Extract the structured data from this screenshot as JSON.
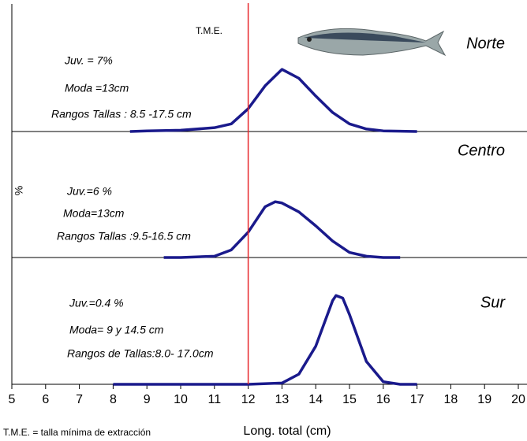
{
  "chart_data": {
    "type": "line",
    "xlabel": "Long. total (cm)",
    "ylabel": "%",
    "xlim": [
      5,
      20
    ],
    "xticks": [
      5,
      6,
      7,
      8,
      9,
      10,
      11,
      12,
      13,
      14,
      15,
      16,
      17,
      18,
      19,
      20
    ],
    "ylim": [
      0,
      100
    ],
    "color": "#1a1a8c",
    "vline": {
      "value": 12,
      "label": "T.M.E.",
      "color": "#e8282c"
    },
    "footnote": "T.M.E. = talla mínima de extracción",
    "panels": [
      {
        "name": "Norte",
        "annotations": [
          "Juv. = 7%",
          "Moda =13cm",
          "Rangos Tallas : 8.5 -17.5 cm"
        ],
        "x": [
          8.5,
          9,
          10,
          11,
          11.5,
          12,
          12.5,
          13,
          13.5,
          14,
          14.5,
          15,
          15.5,
          16,
          17
        ],
        "values": [
          0,
          0.5,
          1,
          3,
          6,
          18,
          36,
          49,
          42,
          28,
          15,
          6,
          2,
          0.5,
          0
        ]
      },
      {
        "name": "Centro",
        "annotations": [
          "Juv.=6 %",
          "Moda=13cm",
          "Rangos Tallas :9.5-16.5 cm"
        ],
        "x": [
          9.5,
          10,
          11,
          11.5,
          12,
          12.5,
          12.8,
          13,
          13.5,
          14,
          14.5,
          15,
          15.5,
          16,
          16.5
        ],
        "values": [
          0,
          0,
          1,
          6,
          20,
          40,
          44,
          43,
          36,
          25,
          13,
          4,
          1,
          0,
          0
        ]
      },
      {
        "name": "Sur",
        "annotations": [
          "Juv.=0.4 %",
          "Moda= 9 y 14.5 cm",
          "Rangos de Tallas:8.0- 17.0cm"
        ],
        "x": [
          8,
          10,
          12,
          13,
          13.5,
          14,
          14.5,
          14.6,
          14.8,
          15,
          15.5,
          16,
          16.5,
          17
        ],
        "values": [
          0,
          0,
          0,
          1,
          8,
          30,
          66,
          70,
          68,
          55,
          18,
          2,
          0,
          0
        ]
      }
    ]
  }
}
